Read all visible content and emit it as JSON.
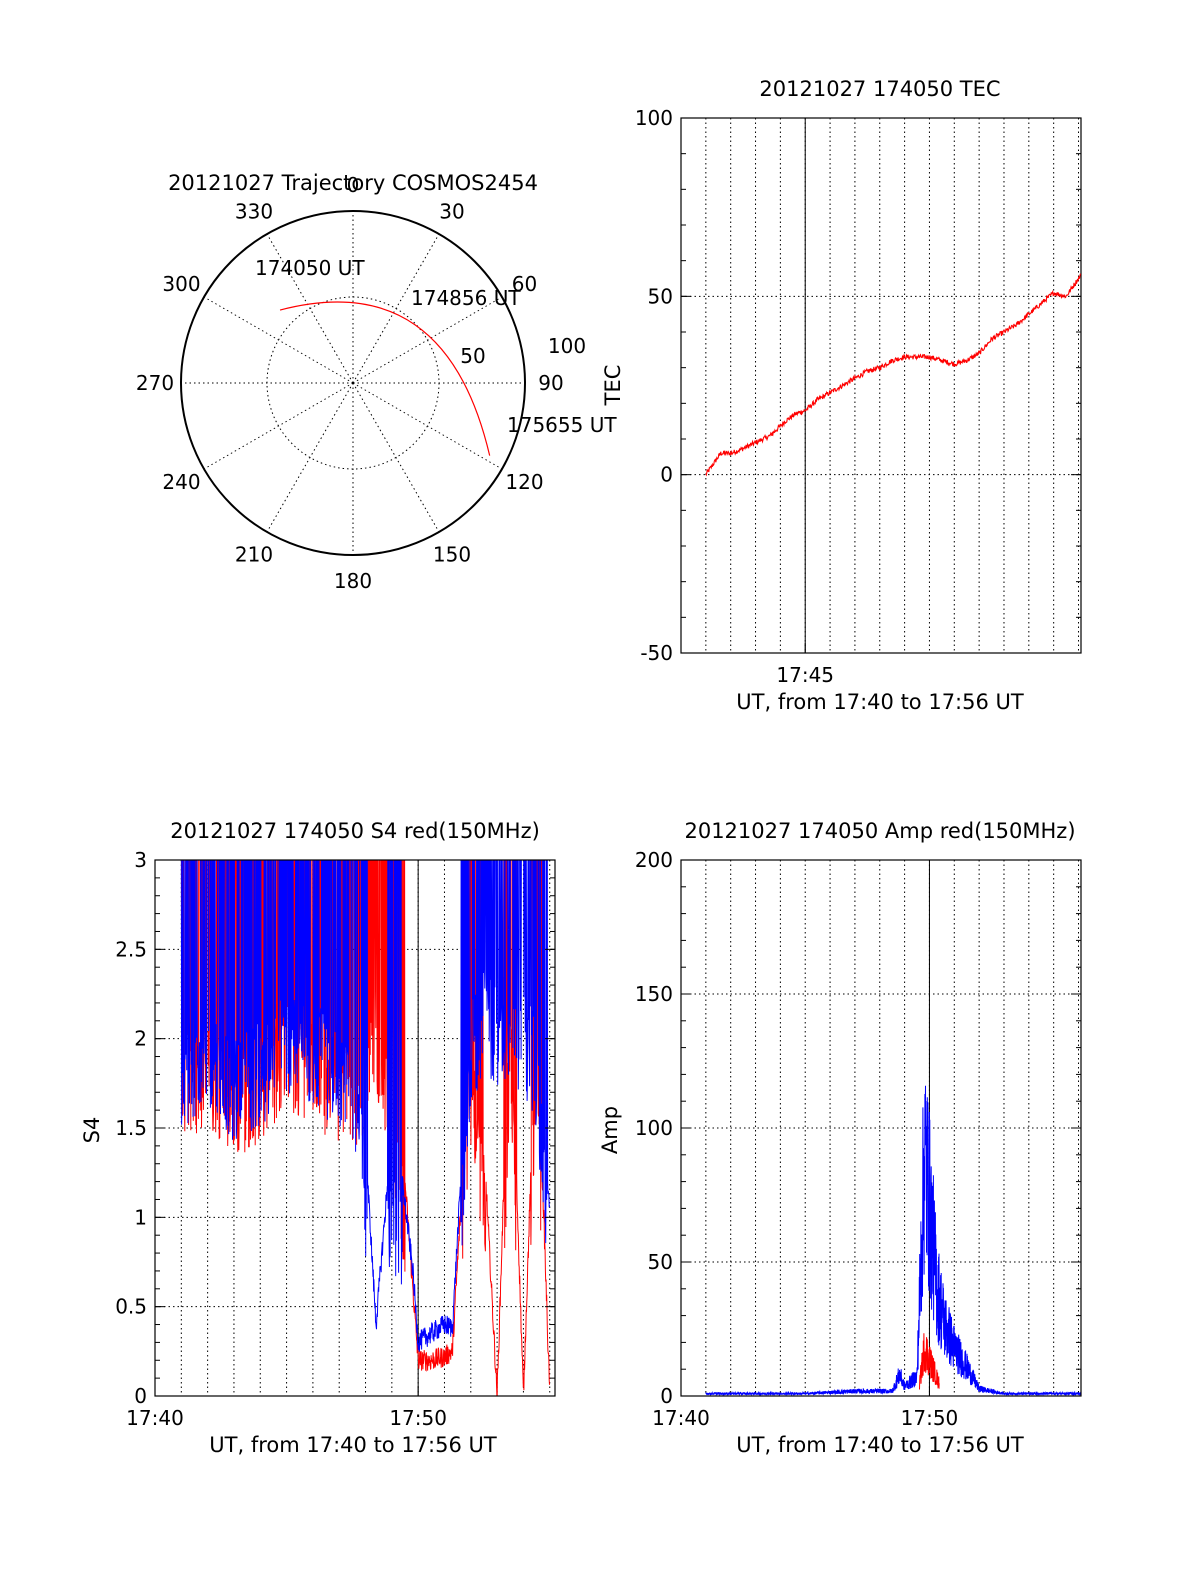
{
  "colors": {
    "red": "#ff0000",
    "blue": "#0000ff",
    "axis": "#000000",
    "background": "#ffffff"
  },
  "chart_data": [
    {
      "type": "polar",
      "title": "20121027 Trajectory COSMOS2454",
      "azimuth_labels": [
        "0",
        "30",
        "60",
        "90",
        "120",
        "150",
        "180",
        "210",
        "240",
        "270",
        "300",
        "330"
      ],
      "ring_labels": [
        "50",
        "100"
      ],
      "trajectory": {
        "points": [
          {
            "label": "174050 UT",
            "azimuth": 315,
            "elevation_ring": 0.6
          },
          {
            "label": "174856 UT",
            "azimuth": 55,
            "elevation_ring": 0.62
          },
          {
            "label": "175655 UT",
            "azimuth": 118,
            "elevation_ring": 0.9
          }
        ]
      },
      "grid": true
    },
    {
      "type": "line",
      "title": "20121027 174050 TEC",
      "xlabel": "UT, from 17:40 to 17:56 UT",
      "ylabel": "TEC",
      "x_tick_labels": [
        "17:45"
      ],
      "y_tick_labels": [
        "-50",
        "0",
        "50",
        "100"
      ],
      "ylim": [
        -50,
        100
      ],
      "xlim_minutes": [
        40.0,
        56.1
      ],
      "grid": true,
      "series": [
        {
          "color": "red",
          "x": [
            41.0,
            41.3,
            41.6,
            42.0,
            42.4,
            43.0,
            43.6,
            44.2,
            44.6,
            45.0,
            45.5,
            46.0,
            46.5,
            47.0,
            47.5,
            48.0,
            48.5,
            49.0,
            49.5,
            50.0,
            50.5,
            51.0,
            51.5,
            52.0,
            52.5,
            53.0,
            53.5,
            54.0,
            54.5,
            55.0,
            55.5,
            56.1
          ],
          "y": [
            0,
            3,
            6,
            6,
            7,
            9,
            11,
            15,
            17,
            18,
            21,
            23,
            25,
            27,
            29,
            30,
            32,
            33,
            33,
            33,
            32,
            31,
            32,
            34,
            38,
            40,
            42,
            45,
            48,
            51,
            50,
            56
          ]
        }
      ]
    },
    {
      "type": "line",
      "title": "20121027 174050 S4 red(150MHz)",
      "xlabel": "UT, from 17:40 to 17:56 UT",
      "ylabel": "S4",
      "x_tick_labels": [
        "17:40",
        "17:50"
      ],
      "y_tick_labels": [
        "0",
        "0.5",
        "1",
        "1.5",
        "2",
        "2.5",
        "3"
      ],
      "ylim": [
        0,
        3
      ],
      "xlim_minutes": [
        40.0,
        55.2
      ],
      "grid": true,
      "series": [
        {
          "color": "red",
          "x": [
            41.0,
            42.0,
            43.0,
            44.0,
            45.0,
            46.0,
            47.0,
            47.8,
            48.4,
            48.9,
            49.4,
            49.8,
            50.0,
            50.5,
            51.0,
            51.3,
            52.0,
            52.5,
            53.0,
            53.5,
            54.0,
            54.5,
            55.0
          ],
          "y": [
            2.0,
            2.1,
            1.9,
            2.0,
            2.2,
            2.1,
            2.0,
            2.0,
            2.3,
            1.8,
            1.4,
            0.6,
            0.2,
            0.2,
            0.22,
            0.25,
            2.0,
            1.4,
            0.0,
            2.3,
            0.0,
            2.2,
            0.0
          ]
        },
        {
          "color": "blue",
          "x": [
            41.0,
            42.0,
            43.0,
            44.0,
            45.0,
            46.0,
            47.0,
            47.8,
            48.4,
            48.9,
            49.4,
            49.8,
            50.0,
            50.5,
            51.0,
            51.3,
            52.0,
            52.5,
            53.0,
            53.5,
            54.0,
            54.5,
            55.0
          ],
          "y": [
            2.1,
            2.2,
            2.0,
            2.1,
            2.3,
            2.2,
            2.1,
            1.9,
            0.4,
            1.3,
            1.2,
            0.7,
            0.3,
            0.35,
            0.4,
            0.38,
            2.2,
            2.4,
            2.3,
            2.2,
            2.3,
            2.1,
            1.0
          ]
        }
      ]
    },
    {
      "type": "line",
      "title": "20121027 174050 Amp red(150MHz)",
      "xlabel": "UT, from 17:40 to 17:56 UT",
      "ylabel": "Amp",
      "x_tick_labels": [
        "17:40",
        "17:50"
      ],
      "y_tick_labels": [
        "0",
        "50",
        "100",
        "150",
        "200"
      ],
      "ylim": [
        0,
        200
      ],
      "xlim_minutes": [
        40.0,
        56.1
      ],
      "grid": true,
      "series": [
        {
          "color": "blue",
          "x": [
            41.0,
            43.0,
            45.0,
            47.0,
            48.5,
            48.8,
            49.0,
            49.5,
            49.8,
            50.0,
            50.3,
            50.6,
            51.0,
            51.5,
            52.0,
            53.0,
            54.0,
            55.0,
            56.1
          ],
          "y": [
            1,
            1,
            1,
            2,
            2,
            9,
            4,
            8,
            100,
            80,
            45,
            30,
            20,
            12,
            3,
            1,
            1,
            1,
            1
          ]
        },
        {
          "color": "red",
          "x": [
            49.6,
            49.8,
            50.0,
            50.2,
            50.4
          ],
          "y": [
            5,
            20,
            15,
            10,
            5
          ]
        }
      ]
    }
  ]
}
